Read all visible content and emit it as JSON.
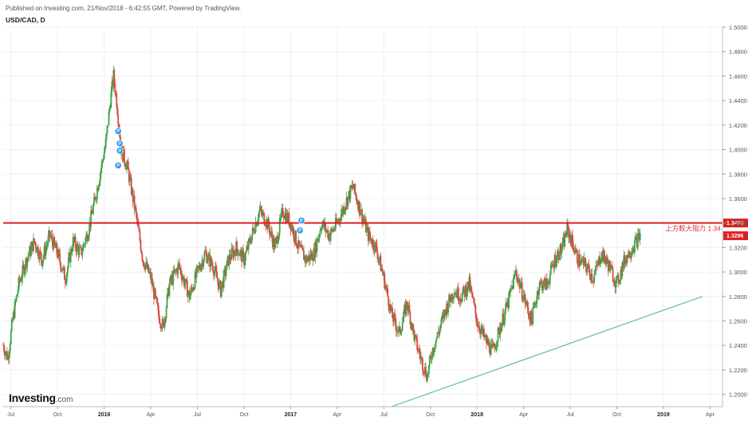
{
  "header": {
    "published": "Published on Investing.com, 21/Nov/2018 - 6:42:55 GMT, Powered by TradingView.",
    "symbol": "USD/CAD, D"
  },
  "brand": {
    "name": "Investing",
    "domain": ".com"
  },
  "colors": {
    "up": "#3aa34a",
    "down": "#d84b3e",
    "resistance": "#dd2020",
    "trend": "#5cbf9a",
    "grid": "#f0f0f0",
    "marker": "#2196f3"
  },
  "chart_data": {
    "type": "candlestick",
    "title": "USD/CAD, D",
    "ylim": [
      1.19,
      1.5
    ],
    "y_ticks": [
      "1.2000",
      "1.2200",
      "1.2400",
      "1.2600",
      "1.2800",
      "1.3000",
      "1.3200",
      "1.3400",
      "1.3600",
      "1.3800",
      "1.4000",
      "1.4200",
      "1.4400",
      "1.4600",
      "1.4800",
      "1.5000"
    ],
    "x_ticks": [
      {
        "label": "Jul",
        "x": 0.5,
        "bold": false
      },
      {
        "label": "Oct",
        "x": 3.5,
        "bold": false
      },
      {
        "label": "2016",
        "x": 6.5,
        "bold": true
      },
      {
        "label": "Apr",
        "x": 9.5,
        "bold": false
      },
      {
        "label": "Jul",
        "x": 12.5,
        "bold": false
      },
      {
        "label": "Oct",
        "x": 15.5,
        "bold": false
      },
      {
        "label": "2017",
        "x": 18.5,
        "bold": true
      },
      {
        "label": "Apr",
        "x": 21.5,
        "bold": false
      },
      {
        "label": "Jul",
        "x": 24.5,
        "bold": false
      },
      {
        "label": "Oct",
        "x": 27.5,
        "bold": false
      },
      {
        "label": "2018",
        "x": 30.5,
        "bold": true
      },
      {
        "label": "Apr",
        "x": 33.5,
        "bold": false
      },
      {
        "label": "Jul",
        "x": 36.5,
        "bold": false
      },
      {
        "label": "Oct",
        "x": 39.5,
        "bold": false
      },
      {
        "label": "2019",
        "x": 42.5,
        "bold": true
      },
      {
        "label": "Apr",
        "x": 45.5,
        "bold": false
      }
    ],
    "series": [
      {
        "t": 0.0,
        "close": 1.24
      },
      {
        "t": 0.3,
        "close": 1.23
      },
      {
        "t": 0.6,
        "close": 1.26
      },
      {
        "t": 1.0,
        "close": 1.29
      },
      {
        "t": 1.5,
        "close": 1.31
      },
      {
        "t": 2.0,
        "close": 1.325
      },
      {
        "t": 2.5,
        "close": 1.31
      },
      {
        "t": 3.0,
        "close": 1.33
      },
      {
        "t": 3.5,
        "close": 1.315
      },
      {
        "t": 4.0,
        "close": 1.295
      },
      {
        "t": 4.5,
        "close": 1.325
      },
      {
        "t": 5.0,
        "close": 1.315
      },
      {
        "t": 5.5,
        "close": 1.335
      },
      {
        "t": 6.0,
        "close": 1.365
      },
      {
        "t": 6.3,
        "close": 1.385
      },
      {
        "t": 6.6,
        "close": 1.405
      },
      {
        "t": 6.9,
        "close": 1.44
      },
      {
        "t": 7.1,
        "close": 1.46
      },
      {
        "t": 7.3,
        "close": 1.44
      },
      {
        "t": 7.6,
        "close": 1.4
      },
      {
        "t": 8.0,
        "close": 1.385
      },
      {
        "t": 8.5,
        "close": 1.35
      },
      {
        "t": 9.0,
        "close": 1.31
      },
      {
        "t": 9.5,
        "close": 1.295
      },
      {
        "t": 10.0,
        "close": 1.265
      },
      {
        "t": 10.3,
        "close": 1.255
      },
      {
        "t": 10.7,
        "close": 1.29
      },
      {
        "t": 11.3,
        "close": 1.305
      },
      {
        "t": 12.0,
        "close": 1.28
      },
      {
        "t": 12.5,
        "close": 1.3
      },
      {
        "t": 13.0,
        "close": 1.315
      },
      {
        "t": 13.5,
        "close": 1.305
      },
      {
        "t": 14.0,
        "close": 1.285
      },
      {
        "t": 14.5,
        "close": 1.31
      },
      {
        "t": 15.0,
        "close": 1.32
      },
      {
        "t": 15.5,
        "close": 1.31
      },
      {
        "t": 16.0,
        "close": 1.33
      },
      {
        "t": 16.5,
        "close": 1.35
      },
      {
        "t": 17.0,
        "close": 1.34
      },
      {
        "t": 17.5,
        "close": 1.32
      },
      {
        "t": 18.0,
        "close": 1.35
      },
      {
        "t": 18.5,
        "close": 1.34
      },
      {
        "t": 19.0,
        "close": 1.32
      },
      {
        "t": 19.5,
        "close": 1.31
      },
      {
        "t": 20.0,
        "close": 1.315
      },
      {
        "t": 20.5,
        "close": 1.34
      },
      {
        "t": 21.0,
        "close": 1.33
      },
      {
        "t": 21.5,
        "close": 1.34
      },
      {
        "t": 22.0,
        "close": 1.355
      },
      {
        "t": 22.5,
        "close": 1.37
      },
      {
        "t": 23.0,
        "close": 1.35
      },
      {
        "t": 23.5,
        "close": 1.33
      },
      {
        "t": 24.0,
        "close": 1.32
      },
      {
        "t": 24.5,
        "close": 1.295
      },
      {
        "t": 25.0,
        "close": 1.265
      },
      {
        "t": 25.5,
        "close": 1.25
      },
      {
        "t": 26.0,
        "close": 1.275
      },
      {
        "t": 26.5,
        "close": 1.245
      },
      {
        "t": 27.0,
        "close": 1.225
      },
      {
        "t": 27.3,
        "close": 1.215
      },
      {
        "t": 27.6,
        "close": 1.235
      },
      {
        "t": 28.0,
        "close": 1.25
      },
      {
        "t": 28.5,
        "close": 1.27
      },
      {
        "t": 29.0,
        "close": 1.285
      },
      {
        "t": 29.5,
        "close": 1.28
      },
      {
        "t": 30.0,
        "close": 1.29
      },
      {
        "t": 30.5,
        "close": 1.26
      },
      {
        "t": 31.0,
        "close": 1.245
      },
      {
        "t": 31.5,
        "close": 1.235
      },
      {
        "t": 32.0,
        "close": 1.255
      },
      {
        "t": 32.5,
        "close": 1.275
      },
      {
        "t": 33.0,
        "close": 1.3
      },
      {
        "t": 33.5,
        "close": 1.28
      },
      {
        "t": 34.0,
        "close": 1.26
      },
      {
        "t": 34.5,
        "close": 1.29
      },
      {
        "t": 35.0,
        "close": 1.29
      },
      {
        "t": 35.5,
        "close": 1.31
      },
      {
        "t": 36.0,
        "close": 1.32
      },
      {
        "t": 36.3,
        "close": 1.335
      },
      {
        "t": 36.6,
        "close": 1.325
      },
      {
        "t": 37.0,
        "close": 1.31
      },
      {
        "t": 37.5,
        "close": 1.305
      },
      {
        "t": 38.0,
        "close": 1.295
      },
      {
        "t": 38.5,
        "close": 1.315
      },
      {
        "t": 39.0,
        "close": 1.305
      },
      {
        "t": 39.5,
        "close": 1.29
      },
      {
        "t": 40.0,
        "close": 1.31
      },
      {
        "t": 40.5,
        "close": 1.32
      },
      {
        "t": 41.0,
        "close": 1.33
      }
    ],
    "resistance": {
      "value": 1.34,
      "label": "1.3400",
      "note": "上方較大阻力 1.34"
    },
    "last_price": {
      "value": 1.3296,
      "label": "1.3296"
    },
    "trendline": [
      {
        "t": 25.0,
        "y": 1.19
      },
      {
        "t": 45.0,
        "y": 1.28
      }
    ],
    "event_markers": [
      {
        "t": 7.4,
        "y": 1.415,
        "label": "P"
      },
      {
        "t": 7.5,
        "y": 1.405,
        "label": "P"
      },
      {
        "t": 7.5,
        "y": 1.399,
        "label": "P"
      },
      {
        "t": 7.4,
        "y": 1.387,
        "label": "P"
      },
      {
        "t": 19.2,
        "y": 1.342,
        "label": "P"
      },
      {
        "t": 19.1,
        "y": 1.334,
        "label": "P"
      }
    ]
  }
}
